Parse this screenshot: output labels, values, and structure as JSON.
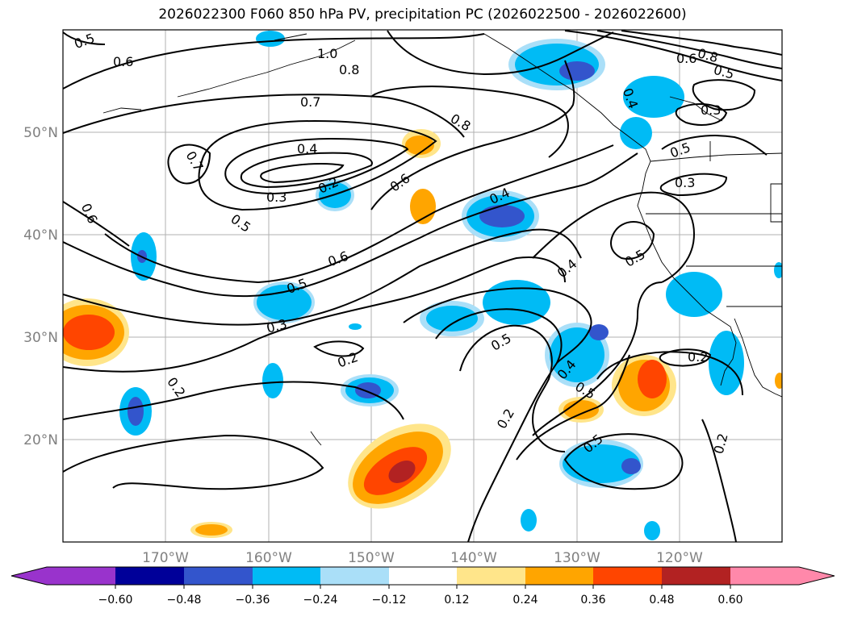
{
  "title": "2026022300 F060 850 hPa PV, precipitation PC (2026022500 - 2026022600)",
  "lat_labels": [
    "50°N",
    "40°N",
    "30°N",
    "20°N"
  ],
  "lon_labels": [
    "170°W",
    "160°W",
    "150°W",
    "140°W",
    "130°W",
    "120°W"
  ],
  "contour_labels": [
    "0.5",
    "0.6",
    "1.0",
    "0.8",
    "0.7",
    "0.8",
    "0.4",
    "0.7",
    "0.3",
    "0.2",
    "0.6",
    "0.5",
    "0.6",
    "0.6",
    "0.4",
    "0.4",
    "0.6",
    "0.8",
    "0.5",
    "0.3",
    "0.5",
    "0.3",
    "0.5",
    "0.5",
    "0.3",
    "0.4",
    "0.2",
    "0.5",
    "0.2",
    "0.4",
    "0.5",
    "0.2",
    "0.5",
    "0.2",
    "0.2"
  ],
  "colorbar": {
    "ticks": [
      "−0.60",
      "−0.48",
      "−0.36",
      "−0.24",
      "−0.12",
      "0.12",
      "0.24",
      "0.36",
      "0.48",
      "0.60"
    ],
    "colors": [
      "#9933cc",
      "#000099",
      "#3355cc",
      "#00bbf5",
      "#aadff8",
      "#ffffff",
      "#ffe58a",
      "#ffa500",
      "#ff4500",
      "#b22222",
      "#ff88aa"
    ]
  }
}
